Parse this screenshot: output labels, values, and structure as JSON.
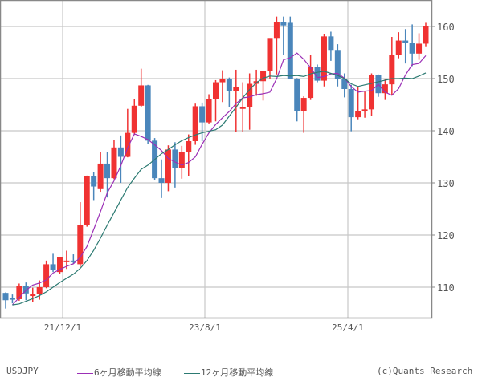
{
  "chart_data": {
    "type": "candlestick",
    "title": "",
    "symbol": "USDJPY",
    "xlabel": "",
    "ylabel": "",
    "ylim": [
      104.2,
      165.1
    ],
    "y_ticks": [
      110,
      120,
      130,
      140,
      150,
      160
    ],
    "x_ticks": [
      {
        "label": "21/12/1",
        "index": 8
      },
      {
        "label": "23/8/1",
        "index": 28
      },
      {
        "label": "25/4/1",
        "index": 48
      }
    ],
    "grid": true,
    "legend_position": "bottom",
    "colors": {
      "up": "#f03232",
      "down": "#4a86bb",
      "ma6": "#9b2fb6",
      "ma12": "#2c7a72",
      "grid": "#c8c8c8",
      "frame": "#888888",
      "text": "#555555"
    },
    "candles": [
      {
        "o": 108.9,
        "h": 109.0,
        "l": 105.9,
        "c": 107.5
      },
      {
        "o": 108.0,
        "h": 108.6,
        "l": 106.9,
        "c": 107.6
      },
      {
        "o": 107.7,
        "h": 110.7,
        "l": 107.4,
        "c": 110.2
      },
      {
        "o": 110.2,
        "h": 110.9,
        "l": 107.5,
        "c": 108.8
      },
      {
        "o": 108.3,
        "h": 109.9,
        "l": 107.2,
        "c": 108.7
      },
      {
        "o": 108.7,
        "h": 111.3,
        "l": 107.6,
        "c": 110.0
      },
      {
        "o": 110.0,
        "h": 115.1,
        "l": 109.8,
        "c": 114.4
      },
      {
        "o": 114.4,
        "h": 116.4,
        "l": 112.9,
        "c": 113.3
      },
      {
        "o": 112.9,
        "h": 115.3,
        "l": 112.5,
        "c": 115.7
      },
      {
        "o": 115.0,
        "h": 117.0,
        "l": 113.5,
        "c": 115.1
      },
      {
        "o": 115.1,
        "h": 116.3,
        "l": 114.5,
        "c": 114.9
      },
      {
        "o": 114.4,
        "h": 126.3,
        "l": 113.9,
        "c": 121.9
      },
      {
        "o": 121.9,
        "h": 131.4,
        "l": 121.6,
        "c": 131.3
      },
      {
        "o": 131.3,
        "h": 132.1,
        "l": 126.7,
        "c": 129.3
      },
      {
        "o": 128.8,
        "h": 136.0,
        "l": 128.3,
        "c": 133.7
      },
      {
        "o": 133.7,
        "h": 135.9,
        "l": 127.2,
        "c": 130.9
      },
      {
        "o": 130.9,
        "h": 138.3,
        "l": 130.7,
        "c": 136.8
      },
      {
        "o": 136.8,
        "h": 139.1,
        "l": 130.0,
        "c": 135.0
      },
      {
        "o": 135.0,
        "h": 144.2,
        "l": 134.9,
        "c": 139.6
      },
      {
        "o": 139.6,
        "h": 146.1,
        "l": 139.2,
        "c": 144.8
      },
      {
        "o": 144.8,
        "h": 151.9,
        "l": 144.5,
        "c": 148.7
      },
      {
        "o": 148.7,
        "h": 148.8,
        "l": 137.4,
        "c": 138.1
      },
      {
        "o": 138.1,
        "h": 138.6,
        "l": 130.5,
        "c": 130.9
      },
      {
        "o": 130.9,
        "h": 134.5,
        "l": 127.1,
        "c": 130.0
      },
      {
        "o": 130.0,
        "h": 137.2,
        "l": 128.4,
        "c": 136.4
      },
      {
        "o": 136.4,
        "h": 137.8,
        "l": 129.1,
        "c": 132.8
      },
      {
        "o": 132.8,
        "h": 137.1,
        "l": 130.8,
        "c": 136.0
      },
      {
        "o": 136.0,
        "h": 139.3,
        "l": 131.3,
        "c": 138.0
      },
      {
        "o": 138.0,
        "h": 145.2,
        "l": 137.3,
        "c": 144.7
      },
      {
        "o": 144.7,
        "h": 145.4,
        "l": 138.0,
        "c": 141.6
      },
      {
        "o": 141.6,
        "h": 147.0,
        "l": 141.4,
        "c": 146.0
      },
      {
        "o": 146.0,
        "h": 149.7,
        "l": 141.8,
        "c": 149.3
      },
      {
        "o": 149.3,
        "h": 151.6,
        "l": 145.5,
        "c": 150.0
      },
      {
        "o": 150.0,
        "h": 150.2,
        "l": 144.6,
        "c": 147.6
      },
      {
        "o": 147.6,
        "h": 151.7,
        "l": 139.8,
        "c": 148.4
      },
      {
        "o": 144.5,
        "h": 149.3,
        "l": 139.8,
        "c": 144.5
      },
      {
        "o": 144.5,
        "h": 151.0,
        "l": 140.2,
        "c": 149.0
      },
      {
        "o": 149.0,
        "h": 151.7,
        "l": 146.7,
        "c": 149.5
      },
      {
        "o": 149.5,
        "h": 151.0,
        "l": 145.8,
        "c": 151.4
      },
      {
        "o": 151.4,
        "h": 155.3,
        "l": 149.9,
        "c": 157.8
      },
      {
        "o": 157.8,
        "h": 161.9,
        "l": 150.8,
        "c": 160.9
      },
      {
        "o": 160.9,
        "h": 161.9,
        "l": 154.5,
        "c": 160.2
      },
      {
        "o": 160.7,
        "h": 161.9,
        "l": 150.3,
        "c": 150.0
      },
      {
        "o": 150.0,
        "h": 150.1,
        "l": 141.8,
        "c": 143.8
      },
      {
        "o": 143.8,
        "h": 146.6,
        "l": 139.6,
        "c": 146.3
      },
      {
        "o": 146.3,
        "h": 154.6,
        "l": 145.9,
        "c": 152.2
      },
      {
        "o": 152.2,
        "h": 152.7,
        "l": 149.3,
        "c": 149.6
      },
      {
        "o": 149.6,
        "h": 158.6,
        "l": 148.5,
        "c": 158.1
      },
      {
        "o": 158.1,
        "h": 159.0,
        "l": 153.4,
        "c": 155.5
      },
      {
        "o": 155.5,
        "h": 156.6,
        "l": 148.5,
        "c": 149.9
      },
      {
        "o": 149.9,
        "h": 151.0,
        "l": 146.4,
        "c": 148.0
      },
      {
        "o": 148.0,
        "h": 148.8,
        "l": 139.9,
        "c": 142.6
      },
      {
        "o": 142.6,
        "h": 148.5,
        "l": 142.2,
        "c": 143.8
      },
      {
        "o": 143.8,
        "h": 147.5,
        "l": 142.5,
        "c": 144.1
      },
      {
        "o": 144.1,
        "h": 151.0,
        "l": 142.9,
        "c": 150.7
      },
      {
        "o": 150.7,
        "h": 150.8,
        "l": 146.5,
        "c": 147.2
      },
      {
        "o": 147.2,
        "h": 150.0,
        "l": 145.9,
        "c": 148.9
      },
      {
        "o": 148.9,
        "h": 158.0,
        "l": 146.9,
        "c": 154.5
      },
      {
        "o": 154.5,
        "h": 158.9,
        "l": 153.9,
        "c": 157.3
      },
      {
        "o": 157.3,
        "h": 159.5,
        "l": 152.9,
        "c": 156.9
      },
      {
        "o": 156.9,
        "h": 160.4,
        "l": 152.4,
        "c": 154.8
      },
      {
        "o": 154.8,
        "h": 158.7,
        "l": 153.6,
        "c": 156.7
      },
      {
        "o": 156.7,
        "h": 160.7,
        "l": 156.2,
        "c": 160.0
      }
    ],
    "series": [
      {
        "name": "6ヶ月移動平均線",
        "color": "#9b2fb6",
        "values": [
          106.6,
          108.0,
          109.4,
          110.4,
          110.8,
          111.4,
          112.7,
          113.4,
          114.0,
          114.5,
          115.7,
          117.8,
          121.1,
          124.5,
          128.1,
          130.4,
          133.3,
          136.7,
          139.4,
          138.9,
          138.3,
          137.3,
          136.2,
          134.7,
          134.0,
          133.4,
          133.9,
          135.0,
          137.4,
          139.6,
          141.2,
          142.5,
          143.7,
          145.2,
          146.3,
          146.5,
          146.9,
          147.1,
          147.4,
          150.0,
          153.6,
          154.0,
          154.9,
          153.7,
          152.1,
          150.2,
          150.4,
          150.9,
          151.0,
          150.1,
          148.5,
          147.4,
          147.6,
          147.7,
          148.9,
          147.4,
          146.8,
          148.1,
          150.7,
          152.7,
          152.9,
          154.4
        ]
      },
      {
        "name": "12ヶ月移動平均線",
        "color": "#2c7a72",
        "values": [
          106.6,
          106.8,
          107.3,
          107.8,
          108.4,
          109.1,
          110.0,
          110.9,
          111.7,
          112.5,
          113.6,
          115.1,
          117.1,
          119.4,
          121.9,
          124.3,
          126.7,
          129.1,
          130.9,
          132.6,
          133.4,
          134.5,
          135.6,
          136.4,
          137.3,
          138.1,
          138.7,
          139.2,
          139.6,
          139.9,
          140.2,
          141.1,
          142.8,
          144.5,
          146.3,
          147.9,
          149.2,
          150.1,
          150.5,
          150.4,
          150.6,
          150.5,
          150.6,
          150.4,
          150.9,
          151.2,
          151.4,
          151.0,
          150.6,
          150.0,
          149.0,
          148.5,
          148.8,
          149.1,
          149.4,
          149.7,
          150.0,
          150.0,
          150.1,
          150.0,
          150.5,
          151.1
        ]
      }
    ]
  },
  "legend": {
    "symbol": "USDJPY",
    "ma6_label": "6ヶ月移動平均線",
    "ma12_label": "12ヶ月移動平均線",
    "credit": "(c)Quants Research"
  }
}
